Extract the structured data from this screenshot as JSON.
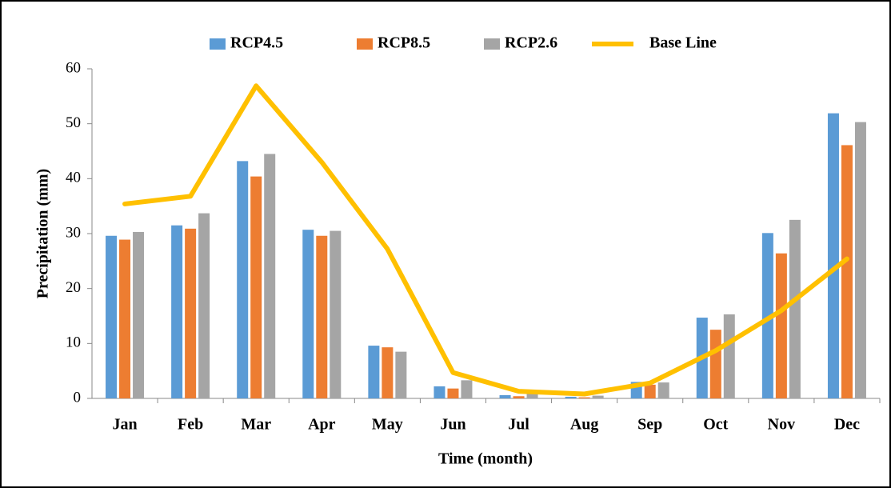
{
  "chart_data": {
    "type": "bar",
    "x_label": "Time (month)",
    "y_label": "Precipitation (mm)",
    "categories": [
      "Jan",
      "Feb",
      "Mar",
      "Apr",
      "May",
      "Jun",
      "Jul",
      "Aug",
      "Sep",
      "Oct",
      "Nov",
      "Dec"
    ],
    "series": [
      {
        "name": "RCP4.5",
        "color": "#5b9bd5",
        "type": "bar",
        "values": [
          29.6,
          31.5,
          43.2,
          30.7,
          9.6,
          2.2,
          0.6,
          0.3,
          3.0,
          14.7,
          30.1,
          51.9
        ]
      },
      {
        "name": "RCP8.5",
        "color": "#ed7d31",
        "type": "bar",
        "values": [
          28.9,
          30.9,
          40.4,
          29.6,
          9.3,
          1.8,
          0.4,
          0.2,
          2.5,
          12.5,
          26.4,
          46.1
        ]
      },
      {
        "name": "RCP2.6",
        "color": "#a5a5a5",
        "type": "bar",
        "values": [
          30.3,
          33.7,
          44.5,
          30.5,
          8.5,
          3.3,
          0.9,
          0.5,
          2.9,
          15.3,
          32.5,
          50.3
        ]
      },
      {
        "name": "Base Line",
        "color": "#ffc000",
        "type": "line",
        "values": [
          35.4,
          36.8,
          56.9,
          43.0,
          27.2,
          4.7,
          1.3,
          0.8,
          2.8,
          8.7,
          16.0,
          25.4
        ]
      }
    ],
    "ylim": [
      0,
      60
    ],
    "yticks": [
      0,
      10,
      20,
      30,
      40,
      50,
      60
    ],
    "grid": false,
    "legend": "top"
  }
}
